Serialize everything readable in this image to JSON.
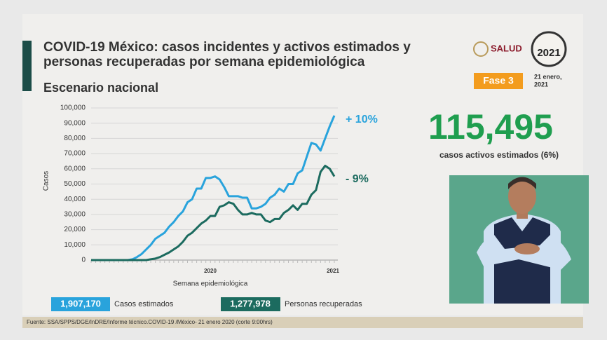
{
  "title_lines": [
    "COVID-19 México: casos incidentes y activos estimados y",
    "personas recuperadas por semana epidemiológica"
  ],
  "subtitle": "Escenario nacional",
  "logo_salud": "SALUD",
  "logo_year": "2021",
  "phase": "Fase 3",
  "date_lines": [
    "21 enero,",
    "2021"
  ],
  "active_cases": "115,495",
  "active_cases_caption": "casos activos estimados (6%)",
  "totals": [
    "1,907,170",
    "1,277,978"
  ],
  "source": "Fuente: SSA/SPPS/DGE/InDRE/Informe técnico.COVID-19 /México- 21 enero 2020 (corte 9:00hrs)",
  "chart_data": {
    "type": "line",
    "y_label": "Casos",
    "x_label": "Semana epidemiológica",
    "year_labels": [
      "2020",
      "2021"
    ],
    "categories": [
      null,
      null,
      null,
      null,
      null,
      null,
      null,
      null,
      null,
      null,
      null,
      null,
      null,
      null,
      null,
      null,
      null,
      null,
      null,
      null,
      null,
      null,
      null,
      null,
      null,
      null,
      null,
      null,
      null,
      null,
      null,
      null,
      null,
      null,
      null,
      null,
      null,
      null,
      null,
      null,
      null,
      null,
      null,
      null,
      null,
      null,
      null,
      null,
      null,
      null,
      null,
      null,
      null,
      null
    ],
    "series": [
      {
        "name": "Casos estimados",
        "color": "#29a3dc",
        "annotation": "+ 10%",
        "values": [
          0,
          0,
          0,
          0,
          0,
          0,
          0,
          0,
          0,
          500,
          2000,
          4000,
          7000,
          10000,
          14000,
          16000,
          18000,
          22000,
          25000,
          29000,
          32000,
          38000,
          40000,
          47000,
          47000,
          54000,
          54000,
          55000,
          53000,
          48000,
          42000,
          42000,
          42000,
          41000,
          41000,
          34000,
          34000,
          35000,
          37000,
          41000,
          43000,
          47000,
          45000,
          50000,
          50000,
          57000,
          59000,
          68000,
          77000,
          76000,
          72000,
          80000,
          88000,
          95000
        ]
      },
      {
        "name": "Personas recuperadas",
        "color": "#1c6b5f",
        "annotation": "- 9%",
        "values": [
          0,
          0,
          0,
          0,
          0,
          0,
          0,
          0,
          0,
          0,
          0,
          0,
          0,
          500,
          1000,
          2000,
          3500,
          5000,
          7000,
          9000,
          12000,
          16000,
          18000,
          21000,
          24000,
          26000,
          29000,
          29000,
          35000,
          36000,
          38000,
          37000,
          33000,
          30000,
          30000,
          31000,
          30000,
          30000,
          26000,
          25000,
          27000,
          27000,
          31000,
          33000,
          36000,
          33000,
          37000,
          37000,
          43000,
          46000,
          58000,
          62000,
          60000,
          55000
        ]
      }
    ],
    "ylim": [
      0,
      100000
    ],
    "yticks": [
      0,
      {
        "value": 10000,
        "label": "10,000"
      },
      {
        "value": 20000,
        "label": "20,000"
      },
      {
        "value": 30000,
        "label": "30,000"
      },
      {
        "value": 40000,
        "label": "40,000"
      },
      {
        "value": 50000,
        "label": "50,000"
      },
      {
        "value": 60000,
        "label": "60,000"
      },
      {
        "value": 70000,
        "label": "70,000"
      },
      {
        "value": 80000,
        "label": "80,000"
      },
      {
        "value": 90000,
        "label": "90,000"
      },
      {
        "value": 100000,
        "label": "100,000"
      }
    ],
    "grid": true
  }
}
